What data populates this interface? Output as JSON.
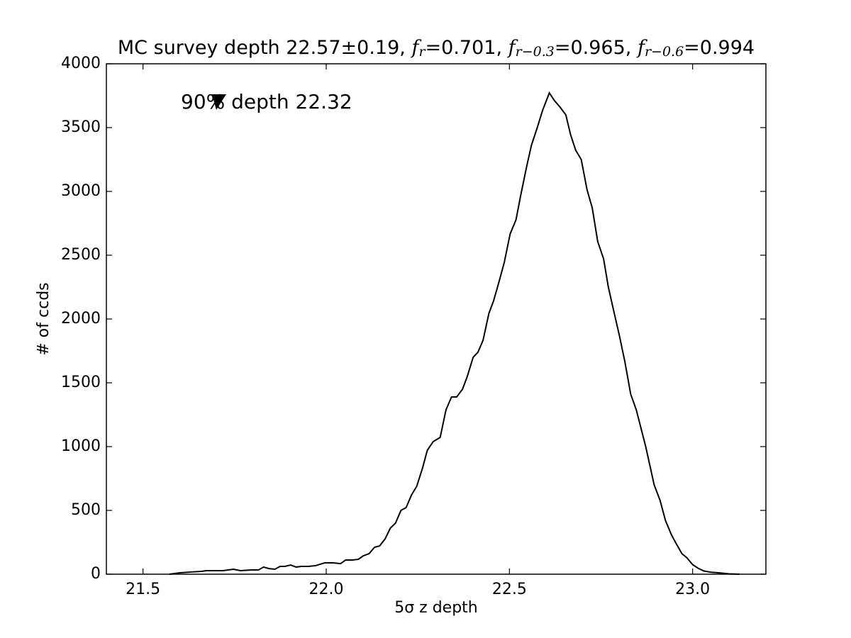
{
  "chart_data": {
    "type": "line",
    "title_parts": [
      {
        "text": "MC survey depth 22.57",
        "kind": "normal"
      },
      {
        "text": "±",
        "kind": "serif"
      },
      {
        "text": "0.19, ",
        "kind": "normal"
      },
      {
        "text": "f",
        "kind": "italic"
      },
      {
        "text": "r",
        "kind": "sub"
      },
      {
        "text": "=",
        "kind": "serif"
      },
      {
        "text": "0.701, ",
        "kind": "normal"
      },
      {
        "text": "f",
        "kind": "italic"
      },
      {
        "text": "r−0.3",
        "kind": "sub"
      },
      {
        "text": "=",
        "kind": "serif"
      },
      {
        "text": "0.965, ",
        "kind": "normal"
      },
      {
        "text": "f",
        "kind": "italic"
      },
      {
        "text": "r−0.6",
        "kind": "sub"
      },
      {
        "text": "=",
        "kind": "serif"
      },
      {
        "text": "0.994",
        "kind": "normal"
      }
    ],
    "annotation": "90% depth 22.32",
    "xlabel": "5σ z depth",
    "ylabel": "# of ccds",
    "color": "#000000",
    "x": [
      21.572,
      21.601,
      21.63,
      21.66,
      21.673,
      21.689,
      21.718,
      21.747,
      21.766,
      21.796,
      21.815,
      21.829,
      21.844,
      21.86,
      21.874,
      21.887,
      21.903,
      21.918,
      21.932,
      21.951,
      21.971,
      21.996,
      22.019,
      22.039,
      22.053,
      22.072,
      22.088,
      22.101,
      22.117,
      22.132,
      22.146,
      22.161,
      22.175,
      22.189,
      22.204,
      22.218,
      22.233,
      22.247,
      22.263,
      22.276,
      22.292,
      22.311,
      22.327,
      22.342,
      22.356,
      22.372,
      22.385,
      22.401,
      22.414,
      22.428,
      22.444,
      22.457,
      22.473,
      22.486,
      22.502,
      22.518,
      22.531,
      22.547,
      22.56,
      22.576,
      22.591,
      22.609,
      22.623,
      22.638,
      22.654,
      22.667,
      22.681,
      22.696,
      22.712,
      22.726,
      22.741,
      22.757,
      22.77,
      22.784,
      22.8,
      22.815,
      22.831,
      22.846,
      22.872,
      22.895,
      22.911,
      22.926,
      22.942,
      22.955,
      22.971,
      22.984,
      23.0,
      23.016,
      23.031,
      23.051,
      23.076,
      23.099,
      23.128
    ],
    "values": [
      0,
      11,
      17,
      22,
      28,
      28,
      28,
      39,
      28,
      33,
      33,
      56,
      44,
      39,
      61,
      61,
      72,
      56,
      61,
      61,
      67,
      89,
      89,
      83,
      111,
      111,
      117,
      144,
      161,
      211,
      222,
      278,
      361,
      400,
      500,
      522,
      622,
      689,
      833,
      972,
      1039,
      1072,
      1289,
      1389,
      1389,
      1450,
      1550,
      1700,
      1739,
      1833,
      2044,
      2144,
      2306,
      2444,
      2667,
      2778,
      2972,
      3194,
      3361,
      3500,
      3639,
      3772,
      3711,
      3661,
      3600,
      3444,
      3322,
      3250,
      3011,
      2872,
      2606,
      2472,
      2250,
      2072,
      1872,
      1667,
      1411,
      1290,
      1000,
      700,
      580,
      420,
      310,
      240,
      160,
      130,
      75,
      45,
      25,
      15,
      10,
      3,
      0
    ],
    "xlim": [
      21.4,
      23.2
    ],
    "ylim": [
      0,
      4000
    ],
    "xticks": [
      21.5,
      {
        "value": 22,
        "label": "22.0"
      },
      22.5,
      {
        "value": 23,
        "label": "23.0"
      }
    ],
    "yticks": [
      0,
      500,
      1000,
      1500,
      2000,
      2500,
      3000,
      3500,
      4000
    ]
  }
}
